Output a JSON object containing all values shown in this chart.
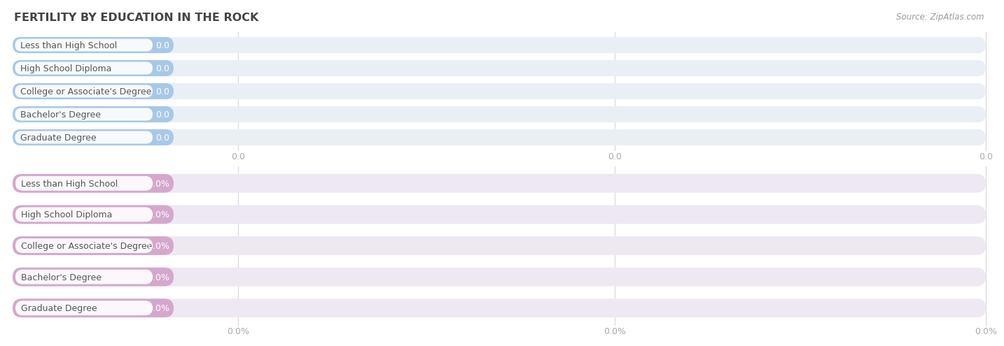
{
  "title": "FERTILITY BY EDUCATION IN THE ROCK",
  "source": "Source: ZipAtlas.com",
  "categories": [
    "Less than High School",
    "High School Diploma",
    "College or Associate's Degree",
    "Bachelor's Degree",
    "Graduate Degree"
  ],
  "bar_color_top": "#a8c8e8",
  "bar_bg_color_top": "#eaeff5",
  "bar_color_bottom": "#d4a8cc",
  "bar_bg_color_bottom": "#ede8f2",
  "tick_color": "#aaaaaa",
  "background_color": "#ffffff",
  "title_color": "#444444",
  "source_color": "#999999",
  "grid_color": "#d8d8d8",
  "xtick_labels_top": [
    "0.0",
    "0.0",
    "0.0"
  ],
  "xtick_labels_bottom": [
    "0.0%",
    "0.0%",
    "0.0%"
  ],
  "label_fontsize": 9.0,
  "value_fontsize": 9.0,
  "title_fontsize": 11.5
}
